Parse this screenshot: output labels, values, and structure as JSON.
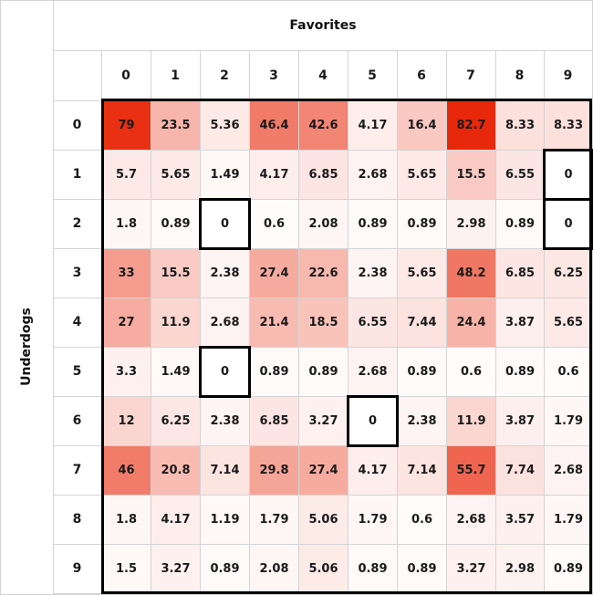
{
  "chart_data": {
    "type": "heatmap",
    "title": "Favorites",
    "xlabel": "Favorites",
    "ylabel": "Underdogs",
    "x_categories": [
      "0",
      "1",
      "2",
      "3",
      "4",
      "5",
      "6",
      "7",
      "8",
      "9"
    ],
    "y_categories": [
      "0",
      "1",
      "2",
      "3",
      "4",
      "5",
      "6",
      "7",
      "8",
      "9"
    ],
    "values": [
      [
        "79",
        "23.5",
        "5.36",
        "46.4",
        "42.6",
        "4.17",
        "16.4",
        "82.7",
        "8.33",
        "8.33"
      ],
      [
        "5.7",
        "5.65",
        "1.49",
        "4.17",
        "6.85",
        "2.68",
        "5.65",
        "15.5",
        "6.55",
        "0"
      ],
      [
        "1.8",
        "0.89",
        "0",
        "0.6",
        "2.08",
        "0.89",
        "0.89",
        "2.98",
        "0.89",
        "0"
      ],
      [
        "33",
        "15.5",
        "2.38",
        "27.4",
        "22.6",
        "2.38",
        "5.65",
        "48.2",
        "6.85",
        "6.25"
      ],
      [
        "27",
        "11.9",
        "2.68",
        "21.4",
        "18.5",
        "6.55",
        "7.44",
        "24.4",
        "3.87",
        "5.65"
      ],
      [
        "3.3",
        "1.49",
        "0",
        "0.89",
        "0.89",
        "2.68",
        "0.89",
        "0.6",
        "0.89",
        "0.6"
      ],
      [
        "12",
        "6.25",
        "2.38",
        "6.85",
        "3.27",
        "0",
        "2.38",
        "11.9",
        "3.87",
        "1.79"
      ],
      [
        "46",
        "20.8",
        "7.14",
        "29.8",
        "27.4",
        "4.17",
        "7.14",
        "55.7",
        "7.74",
        "2.68"
      ],
      [
        "1.8",
        "4.17",
        "1.19",
        "1.79",
        "5.06",
        "1.79",
        "0.6",
        "2.68",
        "3.57",
        "1.79"
      ],
      [
        "1.5",
        "3.27",
        "0.89",
        "2.08",
        "5.06",
        "0.89",
        "0.89",
        "3.27",
        "2.98",
        "0.89"
      ]
    ],
    "highlighted_zero_cells": [
      [
        1,
        9
      ],
      [
        2,
        2
      ],
      [
        2,
        9
      ],
      [
        5,
        2
      ],
      [
        6,
        5
      ]
    ],
    "colors": {
      "high": "#e8280a",
      "low": "#ffffff",
      "border": "#000000",
      "grid": "#d4d4d4"
    }
  }
}
